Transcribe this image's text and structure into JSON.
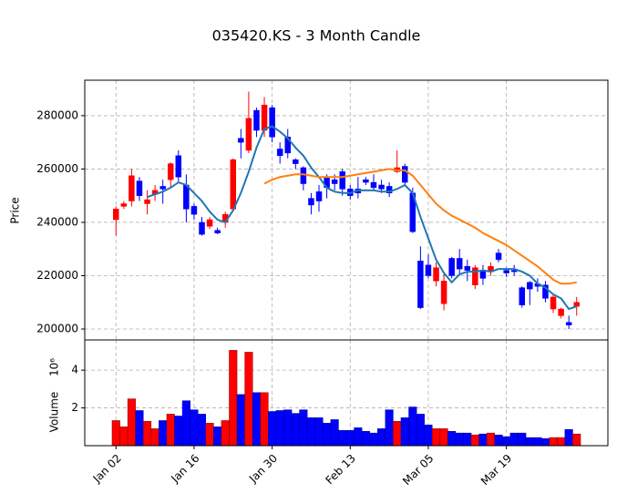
{
  "chart_data": {
    "type": "candlestick",
    "title": "035420.KS - 3 Month Candle",
    "ylabel": "Price",
    "categories": [
      "Jan 02",
      null,
      null,
      null,
      null,
      null,
      null,
      null,
      null,
      null,
      "Jan 16",
      null,
      null,
      null,
      null,
      null,
      null,
      null,
      null,
      null,
      "Jan 30",
      null,
      null,
      null,
      null,
      null,
      null,
      null,
      null,
      null,
      "Feb 13",
      null,
      null,
      null,
      null,
      null,
      null,
      null,
      null,
      null,
      "Mar 05",
      null,
      null,
      null,
      null,
      null,
      null,
      null,
      null,
      null,
      "Mar 19",
      null,
      null,
      null,
      null,
      null,
      null,
      null,
      null,
      null
    ],
    "open": [
      241000,
      246000,
      248000,
      255500,
      247000,
      250500,
      253500,
      256000,
      265000,
      254000,
      246000,
      240000,
      238500,
      237000,
      240000,
      245000,
      271500,
      267000,
      282000,
      274500,
      283000,
      267500,
      272000,
      263500,
      260500,
      249000,
      251500,
      257000,
      256000,
      259000,
      252500,
      252500,
      256000,
      255000,
      254000,
      253500,
      259000,
      261000,
      251000,
      225500,
      224000,
      218000,
      209500,
      226500,
      226500,
      223500,
      216500,
      222000,
      221500,
      228500,
      222000,
      222000,
      215500,
      217500,
      217000,
      216500,
      207500,
      205000,
      202500,
      208500
    ],
    "high": [
      246000,
      248000,
      260000,
      257000,
      252000,
      254000,
      256000,
      262500,
      267000,
      258000,
      247000,
      242000,
      242000,
      238000,
      244000,
      264000,
      275000,
      289000,
      283000,
      287000,
      284000,
      270000,
      275000,
      264000,
      261000,
      251000,
      254000,
      258000,
      258000,
      260000,
      254000,
      257000,
      257000,
      258000,
      256000,
      255000,
      267000,
      262000,
      253000,
      231000,
      228000,
      225000,
      221000,
      227000,
      230000,
      226000,
      224000,
      224000,
      225000,
      230000,
      223000,
      224000,
      216000,
      218000,
      219000,
      218000,
      213000,
      208000,
      205000,
      212000
    ],
    "low": [
      235000,
      245000,
      246000,
      248000,
      243000,
      248000,
      247000,
      253000,
      255000,
      240000,
      241000,
      235000,
      237500,
      235500,
      238000,
      244000,
      264000,
      266000,
      272000,
      272000,
      270000,
      262000,
      264000,
      260000,
      252000,
      243000,
      244000,
      249000,
      252000,
      250000,
      248500,
      249000,
      254000,
      252000,
      251000,
      249500,
      258500,
      254000,
      236000,
      207500,
      219000,
      216000,
      207000,
      219000,
      220000,
      218000,
      215000,
      216500,
      220000,
      225000,
      219500,
      220000,
      208000,
      209000,
      214000,
      210000,
      206000,
      204000,
      200000,
      205000
    ],
    "close": [
      245000,
      247000,
      257500,
      250000,
      248500,
      252000,
      252500,
      262000,
      257000,
      245000,
      243000,
      235500,
      241000,
      236000,
      243000,
      263500,
      270000,
      279000,
      274500,
      284000,
      272000,
      265000,
      266000,
      262000,
      254500,
      246500,
      248000,
      253000,
      254500,
      252500,
      250000,
      251000,
      255000,
      253000,
      252500,
      251000,
      260500,
      255000,
      236500,
      208000,
      220000,
      223000,
      218000,
      220000,
      222500,
      222000,
      223000,
      219000,
      223500,
      226000,
      221000,
      221500,
      209000,
      215000,
      216000,
      211500,
      212000,
      207500,
      201500,
      210000
    ],
    "up_color": "#ff0000",
    "down_color": "#0000ff",
    "ylim": [
      195900,
      293300
    ],
    "yticks": [
      200000,
      220000,
      240000,
      260000,
      280000
    ],
    "grid": true,
    "mav": [
      {
        "color": "#1f77b4",
        "values": [
          null,
          null,
          null,
          null,
          249500,
          250500,
          251500,
          253000,
          255000,
          254000,
          251000,
          248000,
          244000,
          241000,
          240000,
          244500,
          251000,
          259000,
          268000,
          275000,
          276000,
          274000,
          271500,
          268000,
          265000,
          260500,
          257000,
          253000,
          251500,
          251000,
          251000,
          252000,
          252000,
          252000,
          251500,
          251500,
          252500,
          254000,
          251000,
          242000,
          234000,
          226000,
          221000,
          217500,
          220500,
          221500,
          221500,
          222000,
          221500,
          222500,
          222500,
          222500,
          221500,
          220000,
          217000,
          215500,
          213000,
          211500,
          207500,
          208500
        ]
      },
      {
        "color": "#ff7f0e",
        "values": [
          null,
          null,
          null,
          null,
          null,
          null,
          null,
          null,
          null,
          null,
          null,
          null,
          null,
          null,
          null,
          null,
          null,
          null,
          null,
          254500,
          256000,
          257000,
          257500,
          258000,
          258000,
          257500,
          257000,
          257000,
          257000,
          257000,
          257500,
          258000,
          258500,
          259000,
          259500,
          260000,
          259500,
          259500,
          257500,
          254000,
          250500,
          247000,
          244500,
          242500,
          241000,
          239500,
          238000,
          236000,
          234500,
          233000,
          231500,
          229500,
          227500,
          225500,
          223500,
          221000,
          218500,
          217000,
          217000,
          217500
        ]
      }
    ],
    "volume": {
      "ylabel": "Volume",
      "scale_label": "10⁶",
      "values": [
        1.33,
        1.0,
        2.48,
        1.86,
        1.29,
        0.9,
        1.33,
        1.67,
        1.57,
        2.38,
        1.9,
        1.67,
        1.19,
        1.0,
        1.33,
        5.05,
        2.71,
        4.95,
        2.81,
        2.81,
        1.81,
        1.86,
        1.9,
        1.71,
        1.9,
        1.48,
        1.48,
        1.19,
        1.38,
        0.81,
        0.81,
        0.95,
        0.76,
        0.67,
        0.9,
        1.9,
        1.29,
        1.48,
        2.05,
        1.67,
        1.1,
        0.9,
        0.9,
        0.76,
        0.67,
        0.67,
        0.57,
        0.62,
        0.67,
        0.57,
        0.48,
        0.67,
        0.67,
        0.43,
        0.43,
        0.38,
        0.43,
        0.43,
        0.86,
        0.62
      ],
      "ylim": [
        0,
        5.6
      ],
      "yticks": [
        2,
        4
      ]
    }
  }
}
